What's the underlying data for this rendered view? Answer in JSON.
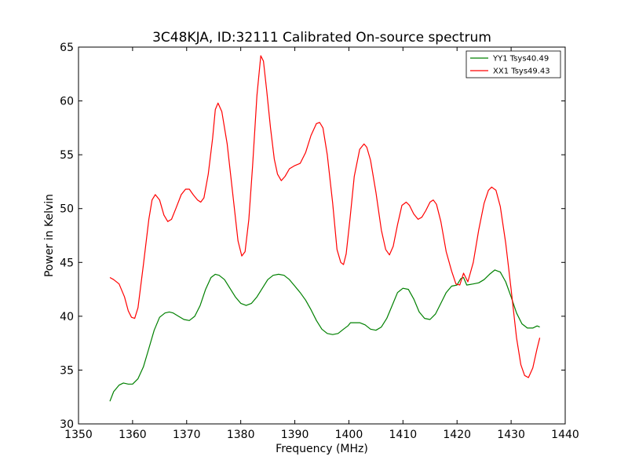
{
  "chart_data": {
    "type": "line",
    "title": "3C48KJA, ID:32111 Calibrated On-source spectrum",
    "xlabel": "Frequency (MHz)",
    "ylabel": "Power in Kelvin",
    "xlim": [
      1350,
      1440
    ],
    "ylim": [
      30,
      65
    ],
    "xticks": [
      1350,
      1360,
      1370,
      1380,
      1390,
      1400,
      1410,
      1420,
      1430,
      1440
    ],
    "yticks": [
      30,
      35,
      40,
      45,
      50,
      55,
      60,
      65
    ],
    "grid": false,
    "legend_position": "top-right",
    "series": [
      {
        "name": "YY1 Tsys40.49",
        "color": "#008000",
        "x": [
          1355.8,
          1356.5,
          1357.5,
          1358.3,
          1359.2,
          1360.0,
          1361.0,
          1362.0,
          1363.0,
          1364.0,
          1365.0,
          1366.0,
          1366.8,
          1367.5,
          1368.5,
          1369.5,
          1370.5,
          1371.5,
          1372.5,
          1373.5,
          1374.5,
          1375.3,
          1376.0,
          1377.0,
          1378.0,
          1379.0,
          1380.0,
          1381.0,
          1382.0,
          1383.0,
          1384.0,
          1385.0,
          1386.0,
          1387.0,
          1388.0,
          1389.0,
          1390.0,
          1391.0,
          1392.0,
          1393.0,
          1394.0,
          1395.0,
          1396.0,
          1397.0,
          1398.0,
          1399.0,
          1399.8,
          1400.3,
          1401.0,
          1402.0,
          1403.0,
          1404.0,
          1405.0,
          1406.0,
          1407.0,
          1408.0,
          1409.0,
          1410.0,
          1411.0,
          1412.0,
          1413.0,
          1414.0,
          1415.0,
          1416.0,
          1417.0,
          1418.0,
          1419.0,
          1420.0,
          1420.7,
          1421.2,
          1421.8,
          1423.0,
          1424.0,
          1425.0,
          1426.0,
          1427.0,
          1428.0,
          1429.0,
          1430.0,
          1431.0,
          1432.0,
          1433.0,
          1434.0,
          1434.8,
          1435.3
        ],
        "values": [
          32.1,
          33.0,
          33.6,
          33.8,
          33.7,
          33.7,
          34.2,
          35.3,
          37.0,
          38.7,
          39.9,
          40.3,
          40.4,
          40.3,
          40.0,
          39.7,
          39.6,
          40.0,
          41.0,
          42.5,
          43.6,
          43.9,
          43.8,
          43.4,
          42.6,
          41.8,
          41.2,
          41.0,
          41.2,
          41.8,
          42.6,
          43.4,
          43.8,
          43.9,
          43.8,
          43.4,
          42.8,
          42.2,
          41.5,
          40.6,
          39.6,
          38.8,
          38.4,
          38.3,
          38.4,
          38.8,
          39.1,
          39.4,
          39.4,
          39.4,
          39.2,
          38.8,
          38.7,
          39.0,
          39.8,
          41.0,
          42.2,
          42.6,
          42.5,
          41.6,
          40.4,
          39.8,
          39.7,
          40.2,
          41.2,
          42.2,
          42.8,
          42.9,
          43.5,
          43.6,
          42.9,
          43.0,
          43.1,
          43.4,
          43.9,
          44.3,
          44.1,
          43.2,
          41.8,
          40.3,
          39.3,
          38.9,
          38.9,
          39.1,
          39.0
        ]
      },
      {
        "name": "XX1 Tsys49.43",
        "color": "#ff0000",
        "x": [
          1355.8,
          1356.5,
          1357.5,
          1358.5,
          1359.2,
          1359.8,
          1360.4,
          1361.0,
          1362.0,
          1363.0,
          1363.6,
          1364.2,
          1365.0,
          1365.8,
          1366.5,
          1367.2,
          1368.0,
          1369.0,
          1369.8,
          1370.5,
          1371.2,
          1372.0,
          1372.6,
          1373.2,
          1374.0,
          1374.8,
          1375.3,
          1375.8,
          1376.5,
          1377.5,
          1378.5,
          1379.5,
          1380.2,
          1380.8,
          1381.5,
          1382.2,
          1383.0,
          1383.7,
          1384.2,
          1384.8,
          1385.5,
          1386.2,
          1386.8,
          1387.5,
          1388.2,
          1389.0,
          1390.0,
          1391.0,
          1392.0,
          1393.0,
          1394.0,
          1394.6,
          1395.2,
          1396.0,
          1397.0,
          1397.8,
          1398.5,
          1399.0,
          1399.5,
          1400.2,
          1401.0,
          1402.0,
          1402.8,
          1403.3,
          1404.0,
          1405.0,
          1406.0,
          1406.8,
          1407.5,
          1408.2,
          1409.0,
          1409.8,
          1410.6,
          1411.2,
          1412.0,
          1412.8,
          1413.5,
          1414.2,
          1415.0,
          1415.6,
          1416.2,
          1417.0,
          1418.0,
          1419.0,
          1419.8,
          1420.5,
          1421.2,
          1422.0,
          1423.0,
          1424.0,
          1425.0,
          1425.8,
          1426.4,
          1427.2,
          1428.0,
          1429.0,
          1430.0,
          1431.0,
          1431.8,
          1432.5,
          1433.2,
          1434.0,
          1434.8,
          1435.3
        ],
        "values": [
          43.6,
          43.4,
          43.0,
          41.8,
          40.5,
          39.9,
          39.8,
          40.8,
          44.8,
          49.0,
          50.8,
          51.3,
          50.8,
          49.4,
          48.8,
          49.0,
          50.0,
          51.3,
          51.8,
          51.8,
          51.3,
          50.8,
          50.6,
          51.0,
          53.2,
          56.5,
          59.2,
          59.8,
          59.0,
          56.0,
          51.5,
          47.0,
          45.6,
          46.0,
          49.0,
          54.0,
          60.5,
          64.2,
          63.7,
          61.0,
          57.5,
          54.6,
          53.2,
          52.6,
          53.0,
          53.7,
          54.0,
          54.2,
          55.2,
          56.8,
          57.9,
          58.0,
          57.5,
          55.0,
          50.5,
          46.2,
          45.0,
          44.8,
          45.8,
          49.0,
          53.0,
          55.5,
          56.0,
          55.7,
          54.5,
          51.5,
          48.0,
          46.2,
          45.7,
          46.5,
          48.5,
          50.3,
          50.6,
          50.3,
          49.5,
          49.0,
          49.2,
          49.8,
          50.6,
          50.8,
          50.4,
          48.8,
          46.0,
          44.2,
          43.0,
          42.9,
          44.0,
          43.2,
          45.0,
          48.0,
          50.5,
          51.7,
          52.0,
          51.7,
          50.2,
          46.8,
          42.5,
          38.0,
          35.5,
          34.5,
          34.3,
          35.2,
          37.0,
          38.0
        ]
      }
    ]
  }
}
